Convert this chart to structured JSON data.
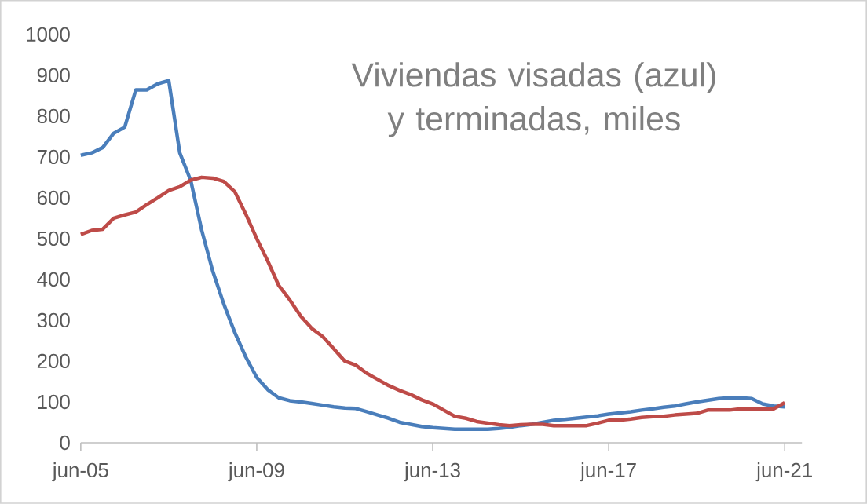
{
  "chart_data": {
    "type": "line",
    "title": "Viviendas visadas (azul) y terminadas, miles",
    "categories": [
      "jun-05",
      null,
      null,
      null,
      null,
      null,
      null,
      null,
      null,
      null,
      null,
      null,
      null,
      null,
      null,
      null,
      "jun-09",
      null,
      null,
      null,
      null,
      null,
      null,
      null,
      null,
      null,
      null,
      null,
      null,
      null,
      null,
      null,
      "jun-13",
      null,
      null,
      null,
      null,
      null,
      null,
      null,
      null,
      null,
      null,
      null,
      null,
      null,
      null,
      null,
      "jun-17",
      null,
      null,
      null,
      null,
      null,
      null,
      null,
      null,
      null,
      null,
      null,
      null,
      null,
      null,
      null,
      "jun-21"
    ],
    "series": [
      {
        "color": "#4a7ebb",
        "values": [
          704,
          710,
          723,
          758,
          773,
          864,
          864,
          879,
          887,
          710,
          642,
          520,
          420,
          340,
          270,
          210,
          160,
          130,
          110,
          103,
          100,
          96,
          92,
          88,
          85,
          84,
          76,
          68,
          60,
          50,
          45,
          40,
          37,
          35,
          33,
          33,
          33,
          33,
          35,
          38,
          42,
          45,
          50,
          55,
          57,
          60,
          63,
          66,
          70,
          73,
          76,
          80,
          83,
          87,
          90,
          95,
          100,
          104,
          108,
          110,
          110,
          108,
          95,
          90,
          88
        ]
      },
      {
        "color": "#be4b48",
        "values": [
          510,
          520,
          523,
          550,
          558,
          565,
          583,
          600,
          618,
          627,
          643,
          650,
          648,
          640,
          615,
          560,
          500,
          445,
          385,
          350,
          310,
          280,
          260,
          230,
          200,
          190,
          170,
          155,
          140,
          128,
          118,
          105,
          95,
          80,
          65,
          60,
          52,
          48,
          44,
          42,
          44,
          45,
          45,
          42,
          42,
          42,
          42,
          48,
          55,
          55,
          58,
          62,
          64,
          65,
          68,
          70,
          72,
          80,
          80,
          80,
          83,
          83,
          83,
          83,
          98
        ]
      }
    ],
    "ylim": [
      0,
      1000
    ],
    "yticks": [
      0,
      100,
      200,
      300,
      400,
      500,
      600,
      700,
      800,
      900,
      1000
    ],
    "marker": "none",
    "line_style": "solid"
  }
}
